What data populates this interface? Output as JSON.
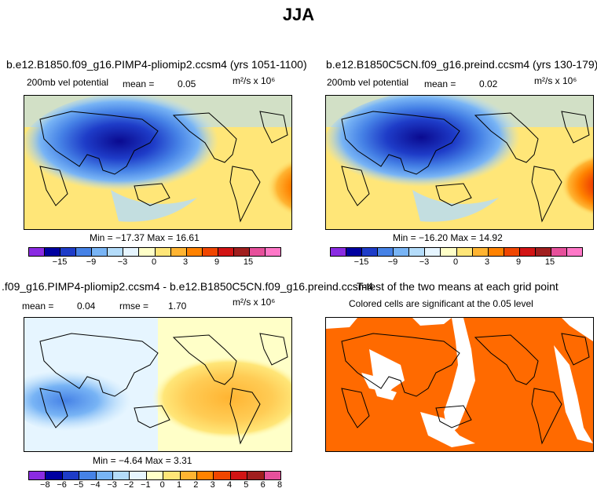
{
  "title": "JJA",
  "panel1": {
    "run": "b.e12.B1850.f09_g16.PIMP4-pliomip2.ccsm4 (yrs 1051-1100)",
    "field": "200mb vel potential",
    "mean_label": "mean =",
    "mean": "0.05",
    "units": "m²/s x 10⁶",
    "minmax": "Min = −17.37 Max =   16.61"
  },
  "panel2": {
    "run": "b.e12.B1850C5CN.f09_g16.preind.ccsm4 (yrs 130-179)",
    "field": "200mb vel potential",
    "mean_label": "mean =",
    "mean": "0.02",
    "units": "m²/s x 10⁶",
    "minmax": "Min = −16.20 Max =   14.92"
  },
  "panel3": {
    "run": ".f09_g16.PIMP4-pliomip2.ccsm4 - b.e12.B1850C5CN.f09_g16.preind.ccsm4",
    "mean_label": "mean =",
    "mean": "0.04",
    "rmse_label": "rmse =",
    "rmse": "1.70",
    "units": "m²/s x 10⁶",
    "minmax": "Min = −4.64 Max =   3.31"
  },
  "panel4": {
    "title": "T-test of the two means at each grid point",
    "subtitle": "Colored cells are significant at the 0.05 level"
  },
  "colorbar_main": {
    "colors": [
      "#8a2be2",
      "#0000a0",
      "#1e3cc8",
      "#4682e6",
      "#78b4f5",
      "#b4dcfa",
      "#e6f5ff",
      "#ffffc8",
      "#ffe678",
      "#ffb432",
      "#ff8200",
      "#f04600",
      "#d21414",
      "#a01e1e",
      "#e6509b",
      "#ff78c8"
    ],
    "tick_labels": [
      "−15",
      "−9",
      "−3",
      "0",
      "3",
      "9",
      "15"
    ]
  },
  "colorbar_diff": {
    "colors": [
      "#8a2be2",
      "#0000a0",
      "#1e3cc8",
      "#4682e6",
      "#78b4f5",
      "#b4dcfa",
      "#e6f5ff",
      "#ffffc8",
      "#ffe678",
      "#ffb432",
      "#ff8200",
      "#f04600",
      "#d21414",
      "#a01e1e",
      "#e6509b"
    ],
    "tick_labels": [
      "−8",
      "−6",
      "−5",
      "−4",
      "−3",
      "−2",
      "−1",
      "0",
      "1",
      "2",
      "3",
      "4",
      "5",
      "6",
      "8"
    ]
  }
}
